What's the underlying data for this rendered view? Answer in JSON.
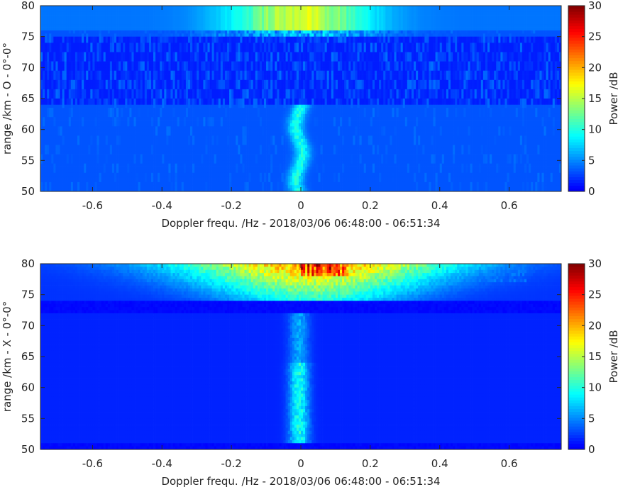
{
  "chart_data": [
    {
      "type": "heatmap",
      "title": "",
      "xlabel": "Doppler frequ. /Hz - 2018/03/06 06:48:00 - 06:51:34",
      "ylabel": "range /km - O - 0°-0°",
      "xlim": [
        -0.75,
        0.75
      ],
      "ylim": [
        50,
        80
      ],
      "x_ticks": [
        "-0.6",
        "-0.4",
        "-0.2",
        "0",
        "0.2",
        "0.4",
        "0.6"
      ],
      "y_ticks": [
        "50",
        "55",
        "60",
        "65",
        "70",
        "75",
        "80"
      ],
      "colorbar": {
        "label": "Power /dB",
        "range": [
          0,
          30
        ],
        "ticks": [
          "0",
          "5",
          "10",
          "15",
          "20",
          "25",
          "30"
        ],
        "colormap": "jet"
      },
      "features": [
        {
          "description_region": "upper band",
          "range_km": [
            76,
            80
          ],
          "doppler_hz": [
            -0.27,
            0.27
          ],
          "peak_db": 16
        },
        {
          "description_region": "central column",
          "range_km": [
            50,
            64
          ],
          "doppler_hz": [
            -0.04,
            0.03
          ],
          "peak_db": 10
        },
        {
          "description_region": "background",
          "level_db": [
            0,
            5
          ]
        }
      ]
    },
    {
      "type": "heatmap",
      "title": "",
      "xlabel": "Doppler frequ. /Hz - 2018/03/06 06:48:00 - 06:51:34",
      "ylabel": "range /km - X - 0°-0°",
      "xlim": [
        -0.75,
        0.75
      ],
      "ylim": [
        50,
        80
      ],
      "x_ticks": [
        "-0.6",
        "-0.4",
        "-0.2",
        "0",
        "0.2",
        "0.4",
        "0.6"
      ],
      "y_ticks": [
        "50",
        "55",
        "60",
        "65",
        "70",
        "75",
        "80"
      ],
      "colorbar": {
        "label": "Power /dB",
        "range": [
          0,
          30
        ],
        "ticks": [
          "0",
          "5",
          "10",
          "15",
          "20",
          "25",
          "30"
        ],
        "colormap": "jet"
      },
      "features": [
        {
          "description_region": "upper band",
          "range_km": [
            74,
            80
          ],
          "doppler_hz": [
            -0.35,
            0.45
          ],
          "peak_db": 28
        },
        {
          "description_region": "central column",
          "range_km": [
            52,
            72
          ],
          "doppler_hz": [
            -0.05,
            0.04
          ],
          "peak_db": 10
        },
        {
          "description_region": "background",
          "level_db": [
            0,
            1
          ]
        }
      ]
    }
  ]
}
